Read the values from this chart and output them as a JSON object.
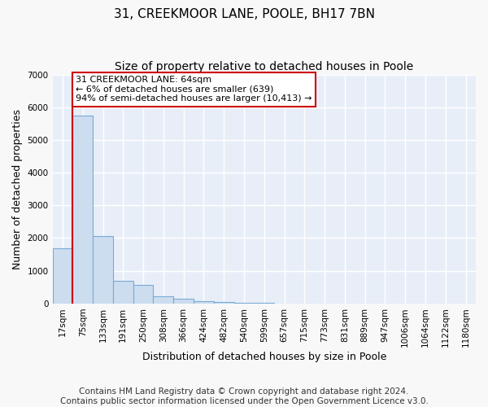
{
  "title": "31, CREEKMOOR LANE, POOLE, BH17 7BN",
  "subtitle": "Size of property relative to detached houses in Poole",
  "xlabel": "Distribution of detached houses by size in Poole",
  "ylabel": "Number of detached properties",
  "bin_labels": [
    "17sqm",
    "75sqm",
    "133sqm",
    "191sqm",
    "250sqm",
    "308sqm",
    "366sqm",
    "424sqm",
    "482sqm",
    "540sqm",
    "599sqm",
    "657sqm",
    "715sqm",
    "773sqm",
    "831sqm",
    "889sqm",
    "947sqm",
    "1006sqm",
    "1064sqm",
    "1122sqm",
    "1180sqm"
  ],
  "bar_heights": [
    1700,
    5750,
    2050,
    700,
    560,
    230,
    145,
    80,
    50,
    30,
    15,
    8,
    4,
    2,
    1,
    1,
    0,
    0,
    0,
    0,
    0
  ],
  "bar_color": "#ccddf0",
  "bar_edge_color": "#7aaad4",
  "property_sqm": 64,
  "annotation_text": "31 CREEKMOOR LANE: 64sqm\n← 6% of detached houses are smaller (639)\n94% of semi-detached houses are larger (10,413) →",
  "annotation_box_color": "#ffffff",
  "annotation_box_edge_color": "#cc0000",
  "property_line_color": "#cc0000",
  "ylim": [
    0,
    7000
  ],
  "yticks": [
    0,
    1000,
    2000,
    3000,
    4000,
    5000,
    6000,
    7000
  ],
  "footer_line1": "Contains HM Land Registry data © Crown copyright and database right 2024.",
  "footer_line2": "Contains public sector information licensed under the Open Government Licence v3.0.",
  "plot_bg_color": "#e8eef8",
  "fig_bg_color": "#f8f8f8",
  "grid_color": "#ffffff",
  "title_fontsize": 11,
  "subtitle_fontsize": 10,
  "axis_label_fontsize": 9,
  "tick_fontsize": 7.5,
  "annotation_fontsize": 8,
  "footer_fontsize": 7.5
}
